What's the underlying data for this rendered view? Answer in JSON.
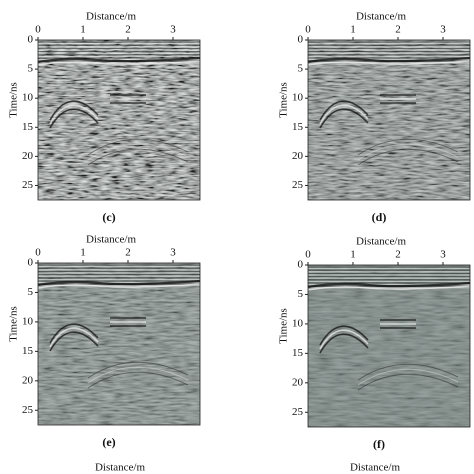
{
  "chart_data": [
    {
      "type": "radargram",
      "caption": "(c)",
      "xlabel": "Distance/m",
      "ylabel": "Time/ns",
      "xlim": [
        0,
        3.6
      ],
      "ylim": [
        0,
        27.5
      ],
      "xticks": [
        0,
        1,
        2,
        3
      ],
      "yticks": [
        0,
        5,
        10,
        15,
        20,
        25
      ]
    },
    {
      "type": "radargram",
      "caption": "(d)",
      "xlabel": "Distance/m",
      "ylabel": "Time/ns",
      "xlim": [
        0,
        3.6
      ],
      "ylim": [
        0,
        27.5
      ],
      "xticks": [
        0,
        1,
        2,
        3
      ],
      "yticks": [
        0,
        5,
        10,
        15,
        20,
        25
      ]
    },
    {
      "type": "radargram",
      "caption": "(e)",
      "xlabel": "Distance/m",
      "ylabel": "Time/ns",
      "xlim": [
        0,
        3.6
      ],
      "ylim": [
        0,
        27.5
      ],
      "xticks": [
        0,
        1,
        2,
        3
      ],
      "yticks": [
        0,
        5,
        10,
        15,
        20,
        25
      ]
    },
    {
      "type": "radargram",
      "caption": "(f)",
      "xlabel": "Distance/m",
      "ylabel": "Time/ns",
      "xlim": [
        0,
        3.6
      ],
      "ylim": [
        0,
        27.5
      ],
      "xticks": [
        0,
        1,
        2,
        3
      ],
      "yticks": [
        0,
        5,
        10,
        15,
        20,
        25
      ]
    }
  ],
  "cropped_labels": [
    "Distance/m",
    "Distance/m"
  ]
}
